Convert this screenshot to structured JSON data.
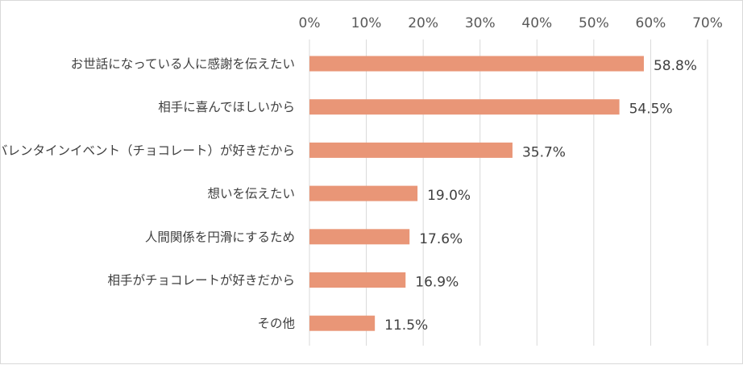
{
  "chart_data": {
    "type": "bar",
    "orientation": "horizontal",
    "categories": [
      "お世話になっている人に感謝を伝えたい",
      "相手に喜んでほしいから",
      "バレンタインイベント（チョコレート）が好きだから",
      "想いを伝えたい",
      "人間関係を円滑にするため",
      "相手がチョコレートが好きだから",
      "その他"
    ],
    "values": [
      58.8,
      54.5,
      35.7,
      19.0,
      17.6,
      16.9,
      11.5
    ],
    "value_labels": [
      "58.8%",
      "54.5%",
      "35.7%",
      "19.0%",
      "17.6%",
      "16.9%",
      "11.5%"
    ],
    "xlim": [
      0,
      70
    ],
    "x_ticks": [
      0,
      10,
      20,
      30,
      40,
      50,
      60,
      70
    ],
    "x_tick_labels": [
      "0%",
      "10%",
      "20%",
      "30%",
      "40%",
      "50%",
      "60%",
      "70%"
    ],
    "x_axis_position": "top",
    "grid": true,
    "bar_color": "#e99677",
    "title": "",
    "xlabel": "",
    "ylabel": ""
  }
}
